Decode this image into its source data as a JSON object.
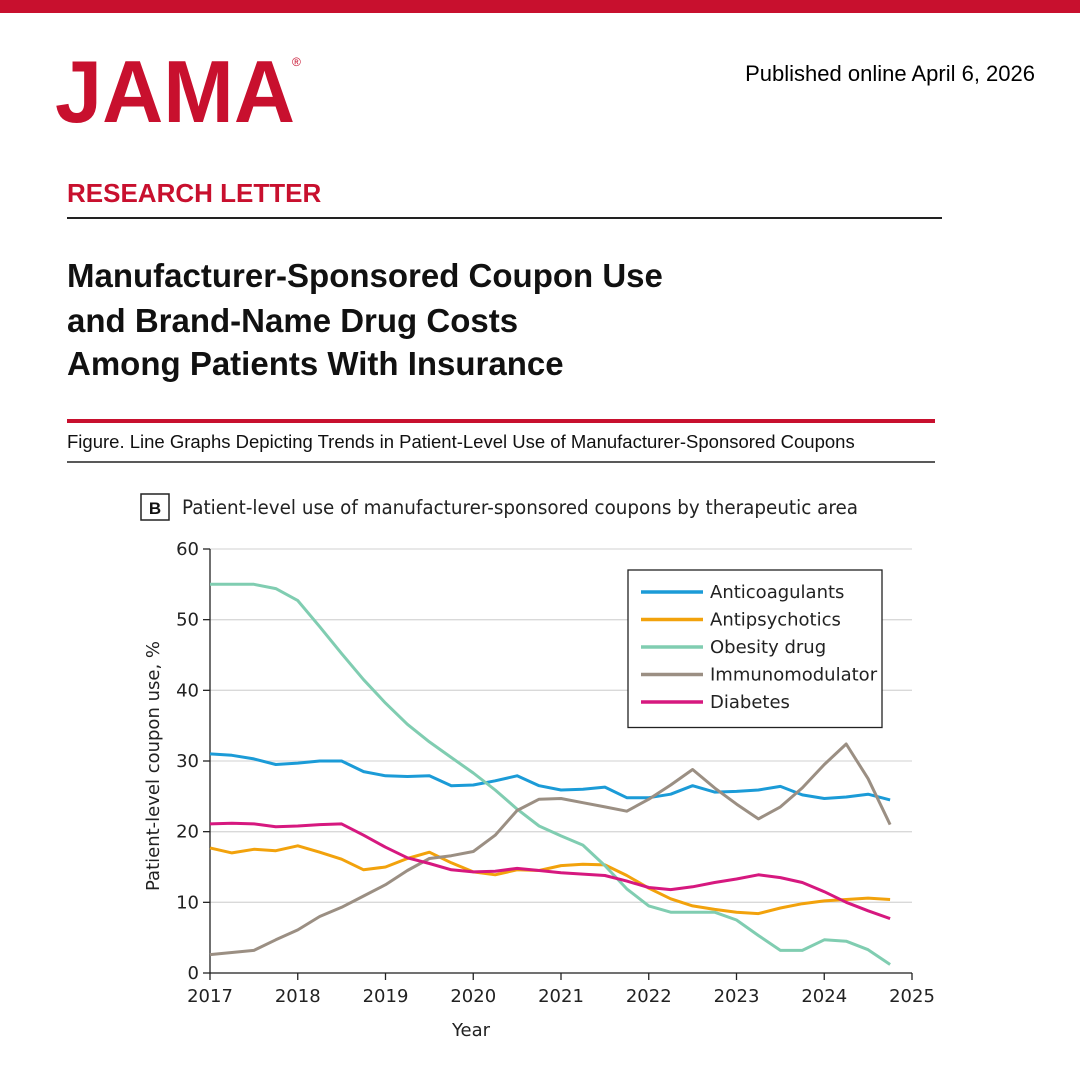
{
  "header": {
    "logo": "JAMA",
    "logo_mark": "®",
    "published": "Published online April 6, 2026"
  },
  "article": {
    "section": "RESEARCH LETTER",
    "title_lines": [
      "Manufacturer-Sponsored Coupon Use",
      "and Brand-Name Drug Costs",
      "Among Patients With Insurance"
    ]
  },
  "figure": {
    "caption": "Figure. Line Graphs Depicting Trends in Patient-Level Use of Manufacturer-Sponsored Coupons",
    "panel": "B",
    "panel_title": "Patient-level use of manufacturer-sponsored coupons by therapeutic area"
  },
  "chart_data": {
    "type": "line",
    "x_label": "Year",
    "y_label": "Patient-level coupon use, %",
    "x": [
      2017,
      2017.25,
      2017.5,
      2017.75,
      2018,
      2018.25,
      2018.5,
      2018.75,
      2019,
      2019.25,
      2019.5,
      2019.75,
      2020,
      2020.25,
      2020.5,
      2020.75,
      2021,
      2021.25,
      2021.5,
      2021.75,
      2022,
      2022.25,
      2022.5,
      2022.75,
      2023,
      2023.25,
      2023.5,
      2023.75,
      2024,
      2024.25,
      2024.5,
      2024.75
    ],
    "xlim": [
      2017,
      2025
    ],
    "xticks": [
      2017,
      2018,
      2019,
      2020,
      2021,
      2022,
      2023,
      2024,
      2025
    ],
    "ylim": [
      0,
      60
    ],
    "yticks": [
      0,
      10,
      20,
      30,
      40,
      50,
      60
    ],
    "grid": true,
    "legend": "upper right",
    "series": [
      {
        "name": "Anticoagulants",
        "color": "#1b9bd7",
        "values": [
          31,
          30.8,
          30.3,
          29.5,
          29.7,
          30,
          30,
          28.5,
          27.9,
          27.8,
          27.9,
          26.5,
          26.6,
          27.2,
          27.9,
          26.5,
          25.9,
          26,
          26.3,
          24.8,
          24.8,
          25.3,
          26.5,
          25.6,
          25.7,
          25.9,
          26.4,
          25.2,
          24.7,
          24.9,
          25.3,
          24.5
        ]
      },
      {
        "name": "Antipsychotics",
        "color": "#f2a20c",
        "values": [
          17.7,
          17,
          17.5,
          17.3,
          18,
          17.1,
          16.1,
          14.6,
          15,
          16.2,
          17.1,
          15.6,
          14.3,
          13.9,
          14.6,
          14.5,
          15.2,
          15.4,
          15.3,
          13.8,
          12,
          10.5,
          9.5,
          9,
          8.6,
          8.4,
          9.2,
          9.8,
          10.2,
          10.4,
          10.6,
          10.4
        ]
      },
      {
        "name": "Obesity drug",
        "color": "#80cdb1",
        "values": [
          55,
          55,
          55,
          54.4,
          52.7,
          49,
          45.2,
          41.5,
          38.2,
          35.2,
          32.7,
          30.5,
          28.3,
          25.9,
          23.2,
          20.8,
          19.4,
          18.1,
          15.2,
          11.9,
          9.5,
          8.6,
          8.6,
          8.6,
          7.5,
          5.3,
          3.2,
          3.2,
          4.7,
          4.5,
          3.3,
          1.2
        ]
      },
      {
        "name": "Immunomodulator",
        "color": "#9b8f83",
        "values": [
          2.6,
          2.9,
          3.2,
          4.7,
          6.1,
          8,
          9.3,
          10.9,
          12.5,
          14.5,
          16.2,
          16.6,
          17.2,
          19.5,
          23,
          24.6,
          24.7,
          24.1,
          23.5,
          22.9,
          24.6,
          26.6,
          28.8,
          26.2,
          23.9,
          21.8,
          23.5,
          26.2,
          29.5,
          32.4,
          27.5,
          21
        ]
      },
      {
        "name": "Diabetes",
        "color": "#d6187f",
        "values": [
          21.1,
          21.2,
          21.1,
          20.7,
          20.8,
          21,
          21.1,
          19.5,
          17.8,
          16.3,
          15.5,
          14.6,
          14.3,
          14.4,
          14.8,
          14.5,
          14.2,
          14,
          13.8,
          13,
          12.1,
          11.8,
          12.2,
          12.8,
          13.3,
          13.9,
          13.5,
          12.8,
          11.5,
          10,
          8.8,
          7.7
        ]
      }
    ]
  }
}
